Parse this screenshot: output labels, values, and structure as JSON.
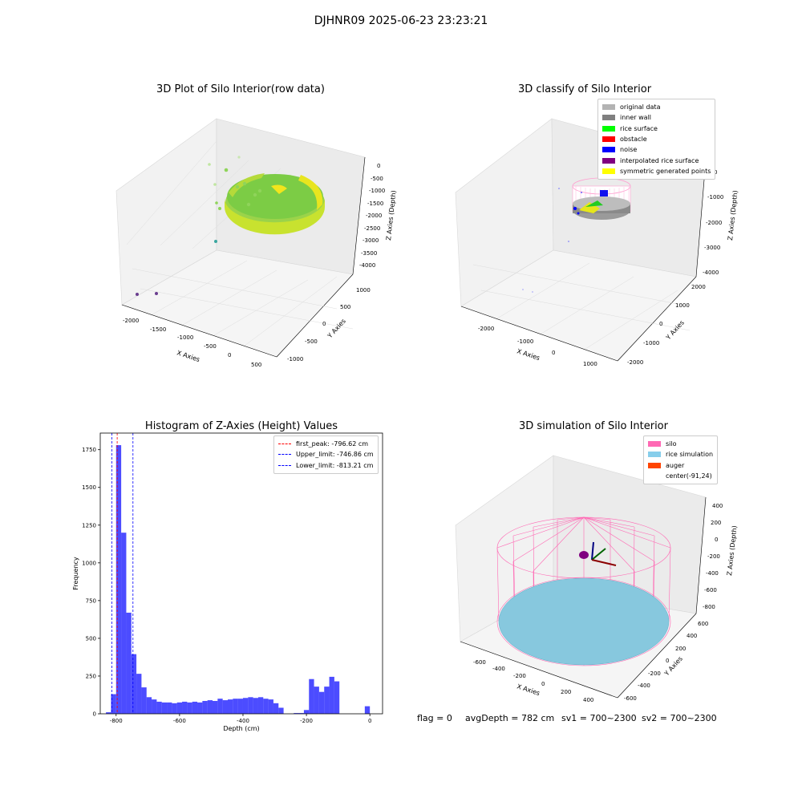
{
  "suptitle": "DJHNR09 2025-06-23 23:23:21",
  "panels": {
    "raw": {
      "title": "3D Plot of Silo Interior(row data)",
      "xlabel": "X Axies",
      "ylabel": "Y Axies",
      "zlabel": "Z Axies (Depth)",
      "xticks": [
        "-2000",
        "-1500",
        "-1000",
        "-500",
        "0",
        "500"
      ],
      "yticks": [
        "-1000",
        "-500",
        "0",
        "500",
        "1000"
      ],
      "zticks": [
        "0",
        "-500",
        "-1000",
        "-1500",
        "-2000",
        "-2500",
        "-3000",
        "-3500",
        "-4000"
      ]
    },
    "classify": {
      "title": "3D classify of Silo Interior",
      "xlabel": "X Axies",
      "ylabel": "Y Axies",
      "zlabel": "Z Axies (Depth)",
      "xticks": [
        "-2000",
        "-1000",
        "0",
        "1000"
      ],
      "yticks": [
        "-2000",
        "-1000",
        "0",
        "1000",
        "2000"
      ],
      "zticks": [
        "0",
        "-1000",
        "-2000",
        "-3000",
        "-4000"
      ],
      "legend": [
        {
          "label": "original data",
          "color": "#b3b3b3"
        },
        {
          "label": "inner wall",
          "color": "#808080"
        },
        {
          "label": "rice surface",
          "color": "#00ff00"
        },
        {
          "label": "obstacle",
          "color": "#ff0000"
        },
        {
          "label": "noise",
          "color": "#0000ff"
        },
        {
          "label": "interpolated rice surface",
          "color": "#800080"
        },
        {
          "label": "symmetric generated points",
          "color": "#ffff00"
        }
      ]
    },
    "simulation": {
      "title": "3D simulation of Silo Interior",
      "xlabel": "X Axies",
      "ylabel": "Y Axies",
      "zlabel": "Z Axies (Depth)",
      "xticks": [
        "-600",
        "-400",
        "-200",
        "0",
        "200",
        "400"
      ],
      "yticks": [
        "-600",
        "-400",
        "-200",
        "0",
        "200",
        "400",
        "600"
      ],
      "zticks": [
        "400",
        "200",
        "0",
        "-200",
        "-400",
        "-600",
        "-800"
      ],
      "legend": [
        {
          "label": "silo",
          "color": "#ff69b4"
        },
        {
          "label": "rice simulation",
          "color": "#87ceeb"
        },
        {
          "label": "auger",
          "color": "#ff4500"
        },
        {
          "label": "center(-91,24)",
          "color": "#ffffff"
        }
      ]
    }
  },
  "chart_data": {
    "type": "bar",
    "title": "Histogram of Z-Axies (Height) Values",
    "xlabel": "Depth (cm)",
    "ylabel": "Frequency",
    "xlim": [
      -850,
      40
    ],
    "ylim": [
      0,
      1860
    ],
    "xticks": [
      -800,
      -600,
      -400,
      -200,
      0
    ],
    "yticks": [
      0,
      250,
      500,
      750,
      1000,
      1250,
      1500,
      1750
    ],
    "bin_width": 16,
    "bin_starts": [
      -832,
      -816,
      -800,
      -784,
      -768,
      -752,
      -736,
      -720,
      -704,
      -688,
      -672,
      -656,
      -640,
      -624,
      -608,
      -592,
      -576,
      -560,
      -544,
      -528,
      -512,
      -496,
      -480,
      -464,
      -448,
      -432,
      -416,
      -400,
      -384,
      -368,
      -352,
      -336,
      -320,
      -304,
      -288,
      -272,
      -256,
      -240,
      -224,
      -208,
      -192,
      -176,
      -160,
      -144,
      -128,
      -112,
      -96,
      -80,
      -64,
      -48,
      -32,
      -16,
      0
    ],
    "values": [
      10,
      130,
      1780,
      1200,
      670,
      395,
      265,
      175,
      110,
      95,
      80,
      75,
      75,
      70,
      75,
      80,
      75,
      80,
      75,
      85,
      90,
      85,
      100,
      90,
      95,
      100,
      100,
      105,
      110,
      105,
      110,
      100,
      95,
      70,
      40,
      0,
      0,
      5,
      5,
      25,
      230,
      180,
      145,
      180,
      245,
      215,
      0,
      0,
      0,
      0,
      0,
      50,
      0
    ],
    "color": "#0000ff",
    "lines": [
      {
        "label": "first_peak: -796.62 cm",
        "x": -796.62,
        "color": "#ff0000"
      },
      {
        "label": "Upper_limit: -746.86 cm",
        "x": -746.86,
        "color": "#0000ff"
      },
      {
        "label": "Lower_limit: -813.21 cm",
        "x": -813.21,
        "color": "#0000ff"
      }
    ],
    "legend_position": "top-right"
  },
  "status": {
    "flag": "flag = 0",
    "avg_depth": "avgDepth = 782 cm",
    "sv1": "sv1 = 700~2300",
    "sv2": "sv2 = 700~2300"
  }
}
